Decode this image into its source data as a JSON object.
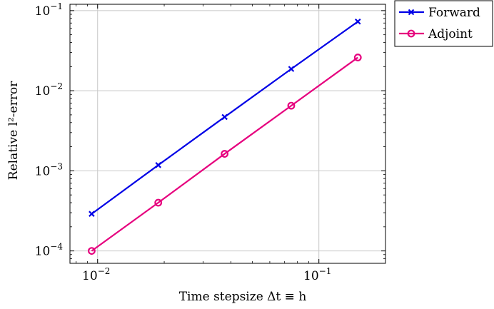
{
  "chart_data": {
    "type": "line",
    "xlabel": "Time stepsize Δt ≡ h",
    "ylabel": "Relative l²-error",
    "x_scale": "log",
    "y_scale": "log",
    "xlim": [
      0.0075,
      0.2
    ],
    "ylim": [
      7e-05,
      0.12
    ],
    "grid": true,
    "legend_position": "outside-top-right",
    "x_ticks": [
      {
        "value": 0.01,
        "base": "10",
        "exp": "−2"
      },
      {
        "value": 0.1,
        "base": "10",
        "exp": "−1"
      }
    ],
    "y_ticks": [
      {
        "value": 0.0001,
        "base": "10",
        "exp": "−4"
      },
      {
        "value": 0.001,
        "base": "10",
        "exp": "−3"
      },
      {
        "value": 0.01,
        "base": "10",
        "exp": "−2"
      },
      {
        "value": 0.1,
        "base": "10",
        "exp": "−1"
      }
    ],
    "x": [
      0.0094,
      0.0188,
      0.0375,
      0.075,
      0.15
    ],
    "series": [
      {
        "name": "Forward",
        "color": "#0000e6",
        "marker": "cross",
        "values": [
          0.00029,
          0.00118,
          0.0047,
          0.0187,
          0.073
        ]
      },
      {
        "name": "Adjoint",
        "color": "#e6007e",
        "marker": "circle",
        "values": [
          0.0001,
          0.0004,
          0.00163,
          0.0065,
          0.026
        ]
      }
    ]
  }
}
